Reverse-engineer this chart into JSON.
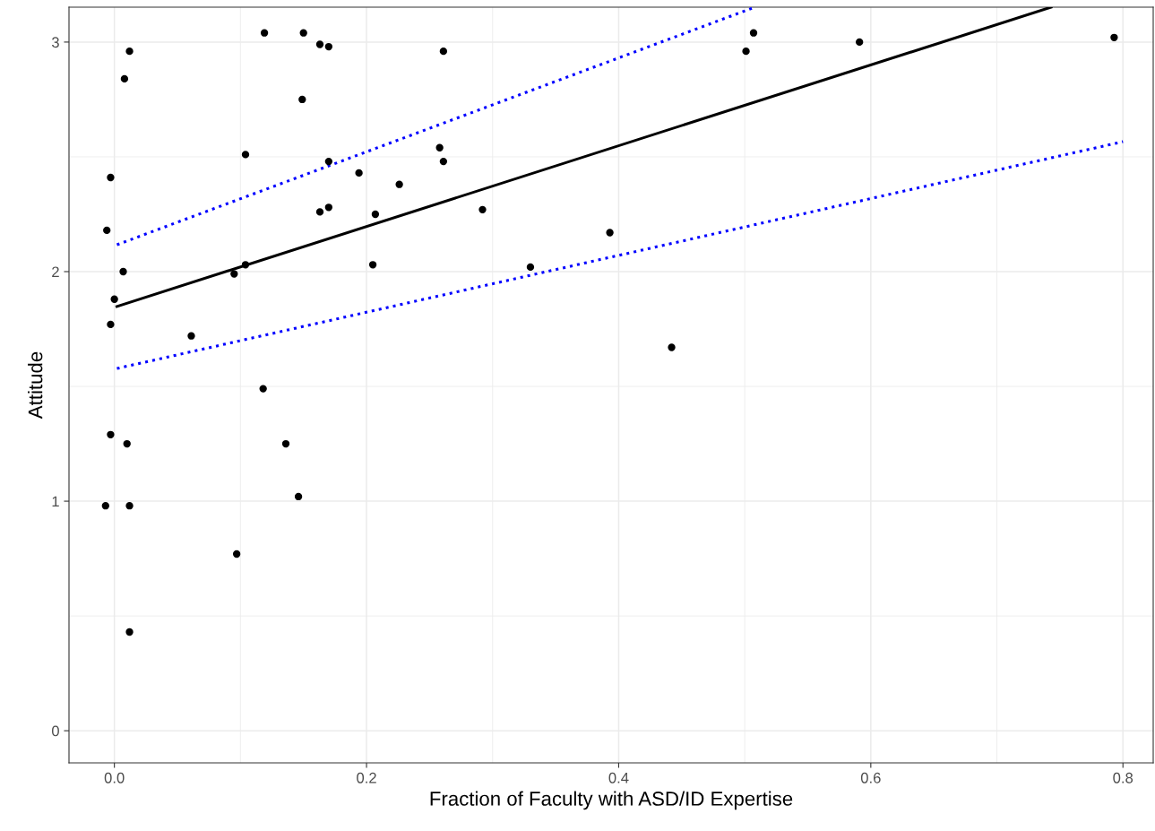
{
  "chart_data": {
    "type": "scatter",
    "xlabel": "Fraction of Faculty with ASD/ID Expertise",
    "ylabel": "Attitude",
    "xlim": [
      -0.036,
      0.824
    ],
    "ylim": [
      -0.14,
      3.152
    ],
    "xticks": [
      {
        "value": 0.0,
        "label": "0.0"
      },
      0.2,
      0.4,
      0.6,
      0.8
    ],
    "yticks": [
      0,
      1,
      2,
      3
    ],
    "grid": true,
    "series": [
      {
        "color": "#000000",
        "marker": "circle",
        "x": [
          -0.007,
          0.012,
          0.012,
          0.01,
          -0.003,
          -0.003,
          0.0,
          0.007,
          -0.006,
          -0.003,
          0.008,
          0.012,
          0.061,
          0.097,
          0.095,
          0.104,
          0.104,
          0.118,
          0.119,
          0.136,
          0.146,
          0.149,
          0.15,
          0.163,
          0.17,
          0.163,
          0.17,
          0.17,
          0.194,
          0.207,
          0.205,
          0.226,
          0.258,
          0.261,
          0.261,
          0.292,
          0.33,
          0.393,
          0.442,
          0.501,
          0.507,
          0.591,
          0.793
        ],
        "values": [
          0.98,
          0.43,
          0.98,
          1.25,
          1.29,
          1.77,
          1.88,
          2.0,
          2.18,
          2.41,
          2.84,
          2.96,
          1.72,
          0.77,
          1.99,
          2.03,
          2.51,
          1.49,
          3.04,
          1.25,
          1.02,
          2.75,
          3.04,
          2.99,
          2.98,
          2.26,
          2.28,
          2.48,
          2.43,
          2.25,
          2.03,
          2.38,
          2.54,
          2.48,
          2.96,
          2.27,
          2.02,
          2.17,
          1.67,
          2.96,
          3.04,
          3.0,
          3.02
        ]
      },
      {
        "type": "line",
        "color": "#000000",
        "line_style": "solid",
        "marker": "none",
        "x": [
          0.002,
          0.743
        ],
        "values": [
          1.848,
          3.152
        ]
      },
      {
        "type": "line",
        "color": "#0000ff",
        "line_style": "dotted",
        "marker": "none",
        "x": [
          0.002,
          0.508
        ],
        "values": [
          2.117,
          3.152
        ]
      },
      {
        "type": "line",
        "color": "#0000ff",
        "line_style": "dotted",
        "marker": "none",
        "x": [
          0.002,
          0.8
        ],
        "values": [
          1.578,
          2.566
        ]
      }
    ]
  }
}
